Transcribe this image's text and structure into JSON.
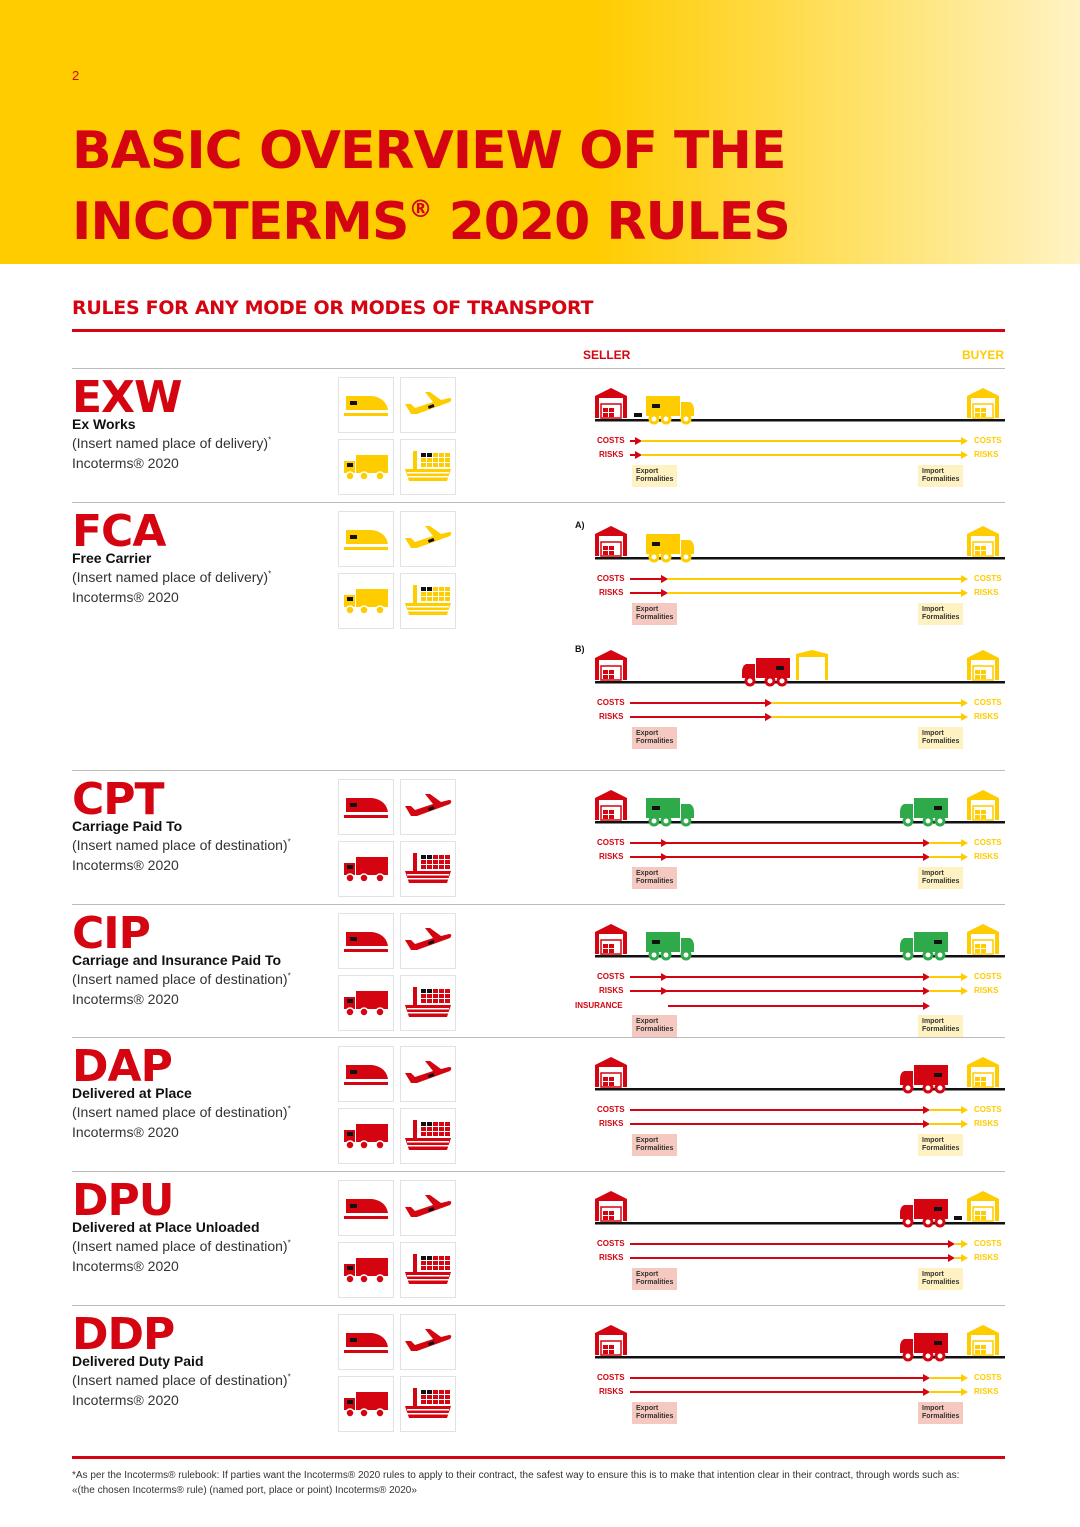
{
  "page_number": "2",
  "title": {
    "line1": "BASIC OVERVIEW OF THE",
    "line2a": "INCOTERMS",
    "reg": "®",
    "line2b": " 2020 RULES"
  },
  "section_title": "RULES FOR ANY MODE OR MODES OF TRANSPORT",
  "columns": {
    "seller": "SELLER",
    "buyer": "BUYER"
  },
  "labels": {
    "costs": "COSTS",
    "risks": "RISKS",
    "insurance": "INSURANCE",
    "export": "Export",
    "import": "Import",
    "formalities": "Formalities",
    "variant_a": "A)",
    "variant_b": "B)"
  },
  "colors": {
    "red": "#d40511",
    "yellow": "#ffcc00",
    "green": "#2faa4a"
  },
  "rules": [
    {
      "code": "EXW",
      "name": "Ex Works",
      "place": "(Insert named place of delivery)",
      "edition": "Incoterms® 2020",
      "icon_color": "yellow"
    },
    {
      "code": "FCA",
      "name": "Free Carrier",
      "place": "(Insert named place of delivery)",
      "edition": "Incoterms® 2020",
      "icon_color": "yellow"
    },
    {
      "code": "CPT",
      "name": "Carriage Paid To",
      "place": "(Insert named place of destination)",
      "edition": "Incoterms® 2020",
      "icon_color": "red"
    },
    {
      "code": "CIP",
      "name": "Carriage and Insurance Paid To",
      "place": "(Insert named place of destination)",
      "edition": "Incoterms® 2020",
      "icon_color": "red"
    },
    {
      "code": "DAP",
      "name": "Delivered at Place",
      "place": "(Insert named place of destination)",
      "edition": "Incoterms® 2020",
      "icon_color": "red"
    },
    {
      "code": "DPU",
      "name": "Delivered at Place Unloaded",
      "place": "(Insert named place of destination)",
      "edition": "Incoterms® 2020",
      "icon_color": "red"
    },
    {
      "code": "DDP",
      "name": "Delivered Duty Paid",
      "place": "(Insert named place of destination)",
      "edition": "Incoterms® 2020",
      "icon_color": "red"
    }
  ],
  "footnote": {
    "line1": "*As per the Incoterms® rulebook: If parties want the Incoterms® 2020 rules to apply to their contract, the safest way to ensure this is to make that intention clear in their contract, through words such as:",
    "line2": "«(the chosen Incoterms® rule) (named port, place or point) Incoterms® 2020»"
  }
}
